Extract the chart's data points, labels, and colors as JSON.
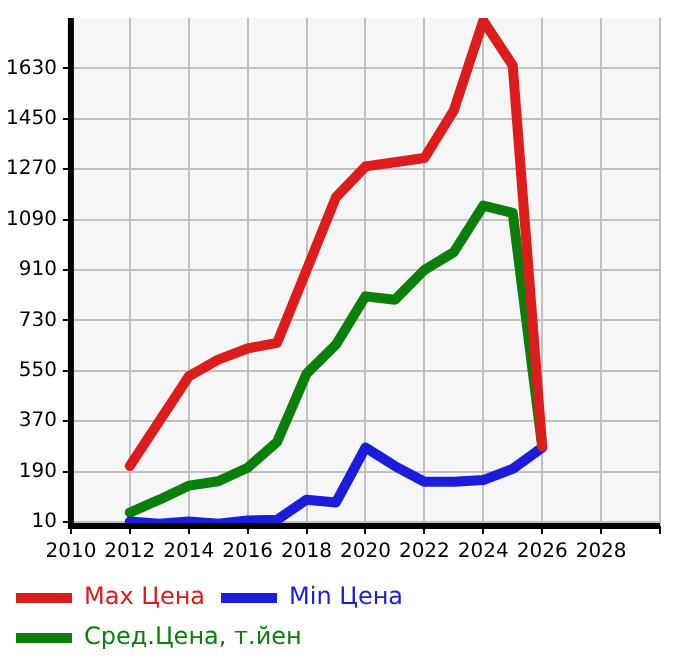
{
  "chart_data": {
    "type": "line",
    "x": [
      2012,
      2013,
      2014,
      2015,
      2016,
      2017,
      2018,
      2019,
      2020,
      2021,
      2022,
      2023,
      2024,
      2025,
      2026
    ],
    "series": [
      {
        "name": "Max Цена",
        "color": "#dd1c1c",
        "values": [
          210,
          370,
          530,
          590,
          630,
          650,
          910,
          1170,
          1280,
          1295,
          1310,
          1480,
          1800,
          1640,
          280
        ]
      },
      {
        "name": "Min Цена",
        "color": "#1c1cdd",
        "values": [
          12,
          4,
          12,
          4,
          16,
          18,
          90,
          80,
          276,
          210,
          154,
          154,
          160,
          200,
          276
        ]
      },
      {
        "name": "Сред.Цена, т.йен",
        "color": "#0a800a",
        "values": [
          44,
          90,
          140,
          156,
          204,
          296,
          540,
          644,
          816,
          804,
          910,
          974,
          1140,
          1114,
          280
        ]
      }
    ],
    "xlim": [
      2010,
      2030
    ],
    "xticks": [
      2010,
      2012,
      2014,
      2016,
      2018,
      2020,
      2022,
      2024,
      2026,
      2028,
      {
        "value": 2030,
        "label": null
      }
    ],
    "ylim": [
      -4,
      1810
    ],
    "yticks": [
      10,
      190,
      370,
      550,
      730,
      910,
      1090,
      1270,
      1450,
      1630
    ],
    "grid": true,
    "legend": "bottom",
    "marker": "none",
    "line_style": "solid"
  }
}
